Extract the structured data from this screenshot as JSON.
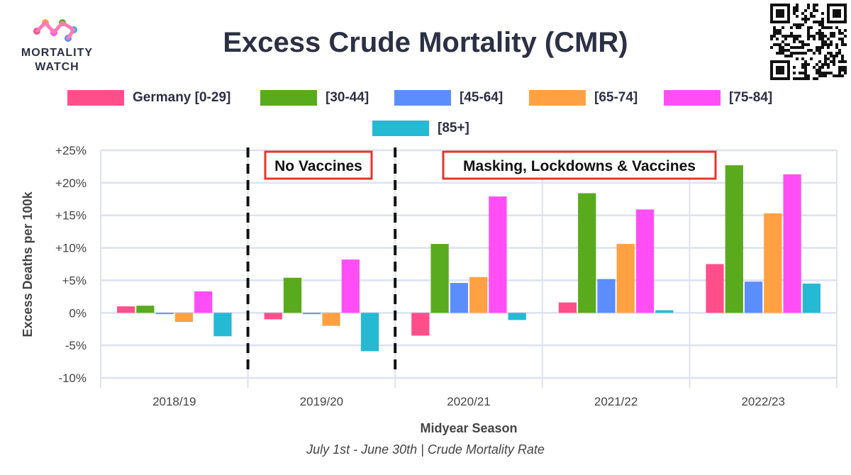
{
  "logo": {
    "line1": "MORTALITY",
    "line2": "WATCH"
  },
  "chart_data": {
    "type": "bar",
    "title": "Excess Crude Mortality (CMR)",
    "ylabel": "Excess Deaths per 100k",
    "xlabel": "Midyear Season",
    "caption": "July 1st - June 30th | Crude Mortality Rate",
    "ylim": [
      -10,
      25
    ],
    "yticks": [
      -10,
      -5,
      0,
      5,
      10,
      15,
      20,
      25
    ],
    "ytick_labels": [
      "-10%",
      "-5%",
      "0%",
      "+5%",
      "+10%",
      "+15%",
      "+20%",
      "+25%"
    ],
    "categories": [
      "2018/19",
      "2019/20",
      "2020/21",
      "2021/22",
      "2022/23"
    ],
    "series": [
      {
        "name": "Germany [0-29]",
        "color": "#ff4f8b",
        "values": [
          1.0,
          -1.0,
          -3.5,
          1.6,
          7.5
        ]
      },
      {
        "name": "[30-44]",
        "color": "#5aaa1e",
        "values": [
          1.1,
          5.4,
          10.6,
          18.4,
          22.7
        ]
      },
      {
        "name": "[45-64]",
        "color": "#5c8dfc",
        "values": [
          -0.2,
          -0.2,
          4.6,
          5.2,
          4.8
        ]
      },
      {
        "name": "[65-74]",
        "color": "#ffa143",
        "values": [
          -1.4,
          -2.0,
          5.5,
          10.6,
          15.3
        ]
      },
      {
        "name": "[75-84]",
        "color": "#ff4ef5",
        "values": [
          3.3,
          8.2,
          17.9,
          15.9,
          21.3
        ]
      },
      {
        "name": "[85+]",
        "color": "#26b9d3",
        "values": [
          -3.6,
          -5.9,
          -1.1,
          0.4,
          4.5
        ]
      }
    ],
    "annotations": [
      {
        "text": "No Vaccines"
      },
      {
        "text": "Masking, Lockdowns & Vaccines"
      }
    ]
  }
}
